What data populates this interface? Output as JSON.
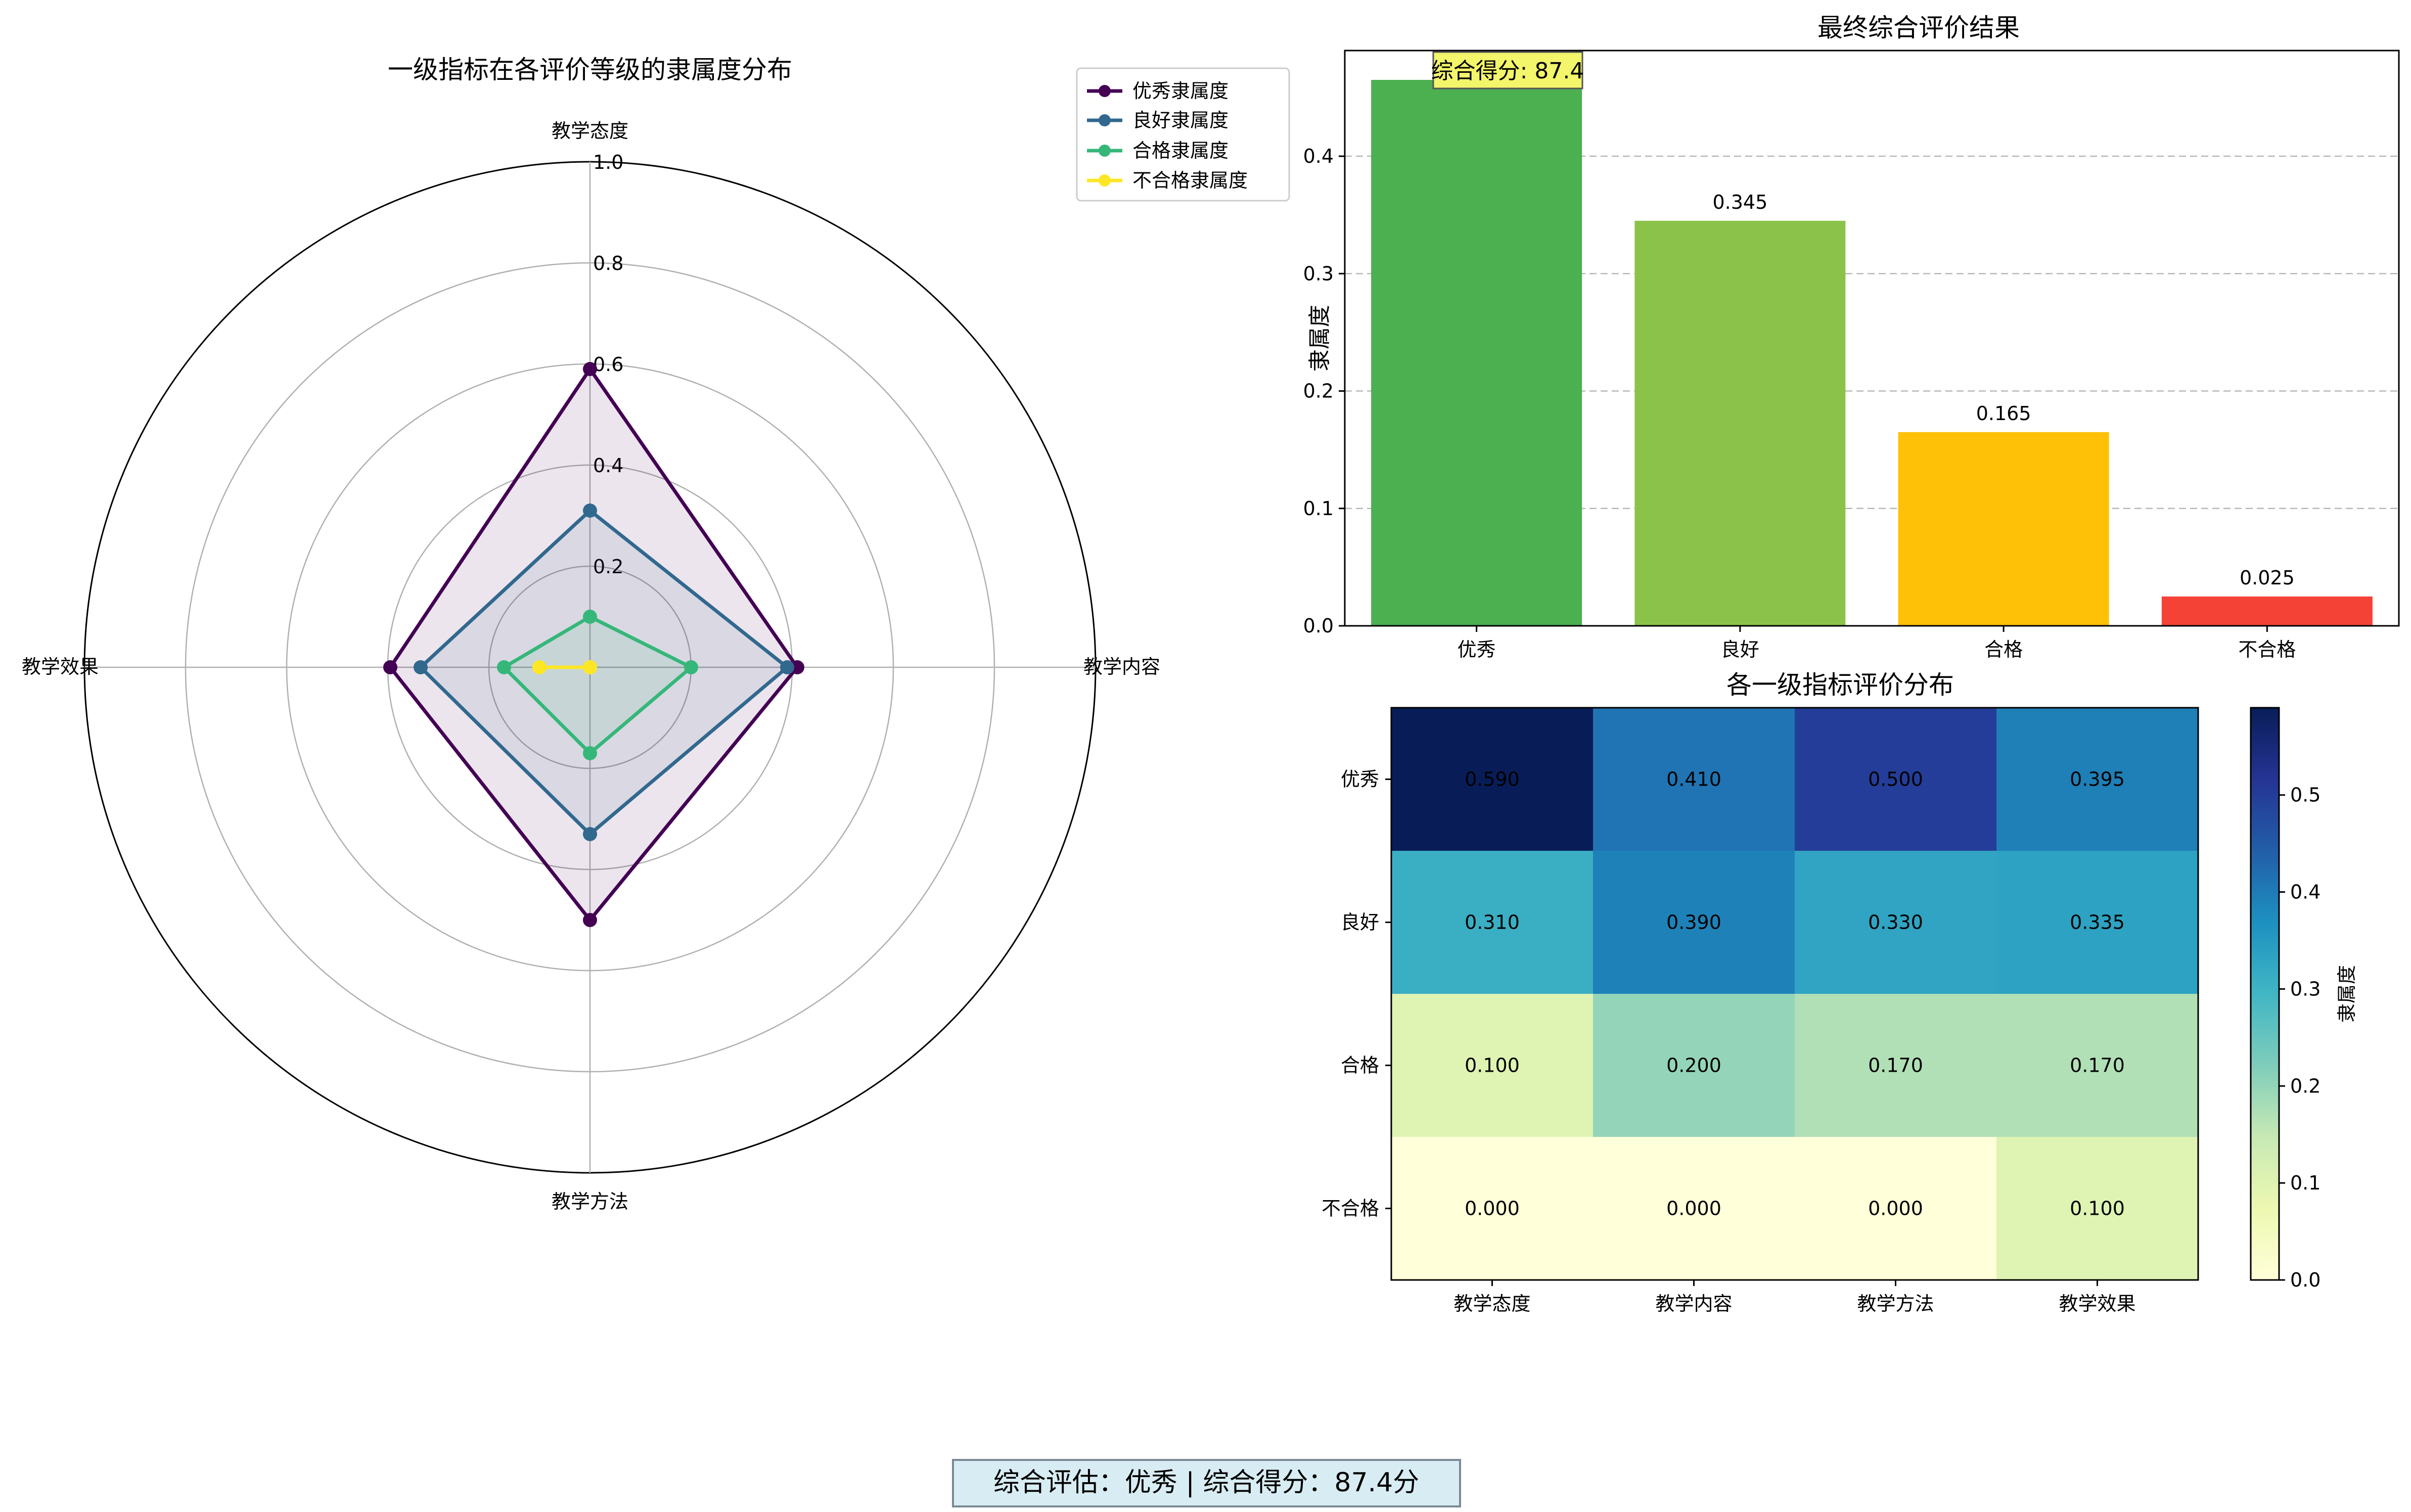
{
  "figure": {
    "footer_text": "综合评估：优秀 | 综合得分：87.4分",
    "colors": {
      "footer_bg": "#d8edf3",
      "footer_border": "#7a8a95"
    }
  },
  "chart_data": [
    {
      "type": "radar",
      "title": "一级指标在各评价等级的隶属度分布",
      "axes": [
        "教学态度",
        "教学内容",
        "教学方法",
        "教学效果"
      ],
      "rlim": [
        0,
        1.0
      ],
      "rticks": [
        0.2,
        0.4,
        0.6,
        0.8,
        1.0
      ],
      "rtick_labels": [
        "0.2",
        "0.4",
        "0.6",
        "0.8",
        "1.0"
      ],
      "grid": true,
      "legend_position": "top-right",
      "series": [
        {
          "name": "优秀隶属度",
          "color": "#440154",
          "values": [
            0.59,
            0.41,
            0.5,
            0.395
          ]
        },
        {
          "name": "良好隶属度",
          "color": "#31688e",
          "values": [
            0.31,
            0.39,
            0.33,
            0.335
          ]
        },
        {
          "name": "合格隶属度",
          "color": "#35b779",
          "values": [
            0.1,
            0.2,
            0.17,
            0.17
          ]
        },
        {
          "name": "不合格隶属度",
          "color": "#fde725",
          "values": [
            0.0,
            0.0,
            0.0,
            0.1
          ]
        }
      ]
    },
    {
      "type": "bar",
      "title": "最终综合评价结果",
      "ylabel": "隶属度",
      "xlabel": "",
      "categories": [
        "优秀",
        "良好",
        "合格",
        "不合格"
      ],
      "values": [
        0.465,
        0.345,
        0.165,
        0.025
      ],
      "value_labels": [
        "0.465",
        "0.345",
        "0.165",
        "0.025"
      ],
      "colors": [
        "#4caf50",
        "#8bc34a",
        "#ffc107",
        "#f44336"
      ],
      "ylim": [
        0,
        0.49
      ],
      "yticks": [
        0.0,
        0.1,
        0.2,
        0.3,
        0.4
      ],
      "ytick_labels": [
        "0.0",
        "0.1",
        "0.2",
        "0.3",
        "0.4"
      ],
      "grid": "y-dashed",
      "annotation": "综合得分: 87.4",
      "annotation_bg": "#ffff66"
    },
    {
      "type": "heatmap",
      "title": "各一级指标评价分布",
      "x_categories": [
        "教学态度",
        "教学内容",
        "教学方法",
        "教学效果"
      ],
      "y_categories": [
        "优秀",
        "良好",
        "合格",
        "不合格"
      ],
      "values": [
        [
          0.59,
          0.41,
          0.5,
          0.395
        ],
        [
          0.31,
          0.39,
          0.33,
          0.335
        ],
        [
          0.1,
          0.2,
          0.17,
          0.17
        ],
        [
          0.0,
          0.0,
          0.0,
          0.1
        ]
      ],
      "cell_labels": [
        [
          "0.590",
          "0.410",
          "0.500",
          "0.395"
        ],
        [
          "0.310",
          "0.390",
          "0.330",
          "0.335"
        ],
        [
          "0.100",
          "0.200",
          "0.170",
          "0.170"
        ],
        [
          "0.000",
          "0.000",
          "0.000",
          "0.100"
        ]
      ],
      "colormap": "YlGnBu",
      "vmin": 0,
      "vmax": 0.59,
      "colorbar_label": "隶属度",
      "colorbar_ticks": [
        0.0,
        0.1,
        0.2,
        0.3,
        0.4,
        0.5
      ],
      "colorbar_tick_labels": [
        "0.0",
        "0.1",
        "0.2",
        "0.3",
        "0.4",
        "0.5"
      ]
    }
  ]
}
